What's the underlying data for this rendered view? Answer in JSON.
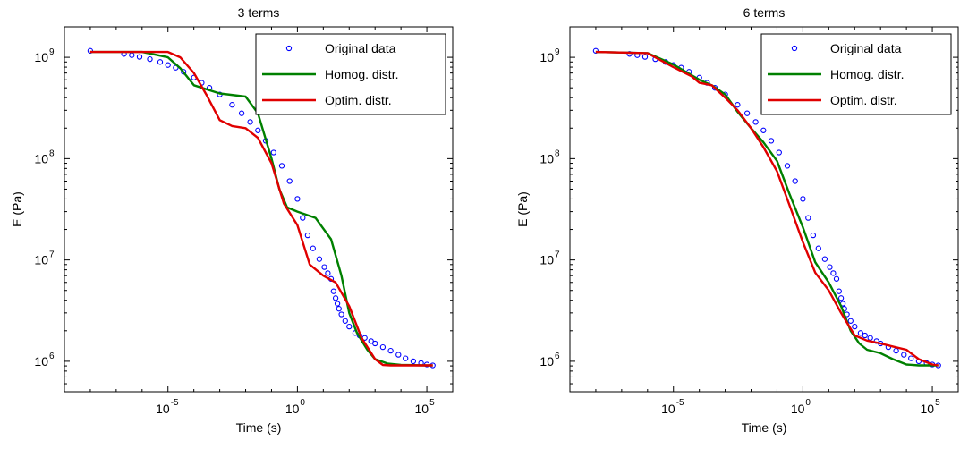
{
  "chart_data": [
    {
      "type": "line",
      "title": "3 terms",
      "xlabel": "Time (s)",
      "ylabel": "E (Pa)",
      "xscale": "log",
      "yscale": "log",
      "xlim": [
        1e-09,
        1000000.0
      ],
      "ylim": [
        500000,
        2000000000
      ],
      "xticks": [
        {
          "base": "10",
          "exp": "-5",
          "value": 1e-05
        },
        {
          "base": "10",
          "exp": "0",
          "value": 1
        },
        {
          "base": "10",
          "exp": "5",
          "value": 100000.0
        }
      ],
      "yticks": [
        {
          "base": "10",
          "exp": "6",
          "value": 1000000.0
        },
        {
          "base": "10",
          "exp": "7",
          "value": 10000000.0
        },
        {
          "base": "10",
          "exp": "8",
          "value": 100000000.0
        },
        {
          "base": "10",
          "exp": "9",
          "value": 1000000000.0
        }
      ],
      "legend": {
        "location": "top-right",
        "entries": [
          "Original data",
          "Homog. distr.",
          "Optim. distr."
        ]
      },
      "series": [
        {
          "name": "Original data",
          "marker": "o",
          "color": "#0000ff",
          "x": [
            1e-08,
            2e-07,
            4e-07,
            8e-07,
            2e-06,
            5e-06,
            1e-05,
            2e-05,
            4e-05,
            0.0001,
            0.0002,
            0.0004,
            0.001,
            0.003,
            0.007,
            0.015,
            0.03,
            0.06,
            0.12,
            0.25,
            0.5,
            1,
            1.6,
            2.5,
            4,
            7,
            11,
            15,
            20,
            25,
            30,
            35,
            40,
            50,
            70,
            100,
            170,
            250,
            400,
            700,
            1000,
            2000,
            4000,
            8000,
            15000,
            30000,
            60000,
            100000,
            170000
          ],
          "y": [
            1160000000.0,
            1080000000.0,
            1050000000.0,
            1010000000.0,
            960000000.0,
            900000000.0,
            840000000.0,
            790000000.0,
            720000000.0,
            630000000.0,
            560000000.0,
            500000000.0,
            430000000.0,
            340000000.0,
            280000000.0,
            230000000.0,
            190000000.0,
            150000000.0,
            115000000.0,
            85000000.0,
            60000000.0,
            40000000.0,
            26000000.0,
            17500000.0,
            13000000.0,
            10200000.0,
            8500000.0,
            7400000.0,
            6500000.0,
            4900000.0,
            4200000.0,
            3700000.0,
            3300000.0,
            2900000.0,
            2500000.0,
            2200000.0,
            1900000.0,
            1800000.0,
            1700000.0,
            1580000.0,
            1500000.0,
            1380000.0,
            1270000.0,
            1160000.0,
            1070000.0,
            1000000.0,
            960000.0,
            930000.0,
            910000.0
          ]
        },
        {
          "name": "Homog. distr.",
          "marker": "",
          "color": "#008000",
          "x": [
            1e-08,
            1e-06,
            1e-05,
            3e-05,
            0.0001,
            0.001,
            0.01,
            0.03,
            0.1,
            0.2,
            0.4,
            1,
            5,
            20,
            50,
            100,
            200,
            500,
            1000,
            3000,
            10000,
            100000,
            170000
          ],
          "y": [
            1130000000.0,
            1130000000.0,
            1000000000.0,
            780000000.0,
            530000000.0,
            440000000.0,
            410000000.0,
            280000000.0,
            100000000.0,
            50000000.0,
            33000000.0,
            30000000.0,
            26000000.0,
            16000000.0,
            7000000.0,
            3000000.0,
            1900000.0,
            1300000.0,
            1050000.0,
            950000.0,
            920000.0,
            910000.0,
            910000.0
          ]
        },
        {
          "name": "Optim. distr.",
          "marker": "",
          "color": "#e00000",
          "x": [
            1e-08,
            1e-05,
            3e-05,
            0.0001,
            0.0003,
            0.001,
            0.003,
            0.01,
            0.03,
            0.1,
            0.3,
            1,
            3,
            10,
            30,
            100,
            300,
            1000,
            2000,
            4000,
            10000,
            100000,
            170000
          ],
          "y": [
            1130000000.0,
            1130000000.0,
            1000000000.0,
            700000000.0,
            430000000.0,
            240000000.0,
            210000000.0,
            200000000.0,
            160000000.0,
            90000000.0,
            36000000.0,
            22000000.0,
            9000000.0,
            7000000.0,
            6000000.0,
            3500000.0,
            1700000.0,
            1050000.0,
            920000.0,
            910000.0,
            910000.0,
            910000.0,
            910000.0
          ]
        }
      ]
    },
    {
      "type": "line",
      "title": "6 terms",
      "xlabel": "Time (s)",
      "ylabel": "E (Pa)",
      "xscale": "log",
      "yscale": "log",
      "xlim": [
        1e-09,
        1000000.0
      ],
      "ylim": [
        500000,
        2000000000
      ],
      "xticks": [
        {
          "base": "10",
          "exp": "-5",
          "value": 1e-05
        },
        {
          "base": "10",
          "exp": "0",
          "value": 1
        },
        {
          "base": "10",
          "exp": "5",
          "value": 100000.0
        }
      ],
      "yticks": [
        {
          "base": "10",
          "exp": "6",
          "value": 1000000.0
        },
        {
          "base": "10",
          "exp": "7",
          "value": 10000000.0
        },
        {
          "base": "10",
          "exp": "8",
          "value": 100000000.0
        },
        {
          "base": "10",
          "exp": "9",
          "value": 1000000000.0
        }
      ],
      "legend": {
        "location": "top-right",
        "entries": [
          "Original data",
          "Homog. distr.",
          "Optim. distr."
        ]
      },
      "series": [
        {
          "name": "Original data",
          "marker": "o",
          "color": "#0000ff",
          "x": [
            1e-08,
            2e-07,
            4e-07,
            8e-07,
            2e-06,
            5e-06,
            1e-05,
            2e-05,
            4e-05,
            0.0001,
            0.0002,
            0.0004,
            0.001,
            0.003,
            0.007,
            0.015,
            0.03,
            0.06,
            0.12,
            0.25,
            0.5,
            1,
            1.6,
            2.5,
            4,
            7,
            11,
            15,
            20,
            25,
            30,
            35,
            40,
            50,
            70,
            100,
            170,
            250,
            400,
            700,
            1000,
            2000,
            4000,
            8000,
            15000,
            30000,
            60000,
            100000,
            170000
          ],
          "y": [
            1160000000.0,
            1080000000.0,
            1050000000.0,
            1010000000.0,
            960000000.0,
            900000000.0,
            840000000.0,
            790000000.0,
            720000000.0,
            630000000.0,
            560000000.0,
            500000000.0,
            430000000.0,
            340000000.0,
            280000000.0,
            230000000.0,
            190000000.0,
            150000000.0,
            115000000.0,
            85000000.0,
            60000000.0,
            40000000.0,
            26000000.0,
            17500000.0,
            13000000.0,
            10200000.0,
            8500000.0,
            7400000.0,
            6500000.0,
            4900000.0,
            4200000.0,
            3700000.0,
            3300000.0,
            2900000.0,
            2500000.0,
            2200000.0,
            1900000.0,
            1800000.0,
            1700000.0,
            1580000.0,
            1500000.0,
            1380000.0,
            1270000.0,
            1160000.0,
            1070000.0,
            1000000.0,
            960000.0,
            930000.0,
            910000.0
          ]
        },
        {
          "name": "Homog. distr.",
          "marker": "",
          "color": "#008000",
          "x": [
            1e-08,
            1e-06,
            1e-05,
            0.0001,
            0.0003,
            0.001,
            0.003,
            0.01,
            0.03,
            0.1,
            0.3,
            1,
            3,
            10,
            30,
            70,
            150,
            300,
            1000,
            3000,
            10000,
            30000,
            100000,
            170000
          ],
          "y": [
            1130000000.0,
            1100000000.0,
            850000000.0,
            600000000.0,
            530000000.0,
            430000000.0,
            290000000.0,
            200000000.0,
            145000000.0,
            95000000.0,
            45000000.0,
            21000000.0,
            9500000.0,
            6000000.0,
            3500000.0,
            2000000.0,
            1500000.0,
            1300000.0,
            1200000.0,
            1050000.0,
            930000.0,
            910000.0,
            910000.0,
            910000.0
          ]
        },
        {
          "name": "Optim. distr.",
          "marker": "",
          "color": "#e00000",
          "x": [
            1e-08,
            1e-06,
            1e-05,
            5e-05,
            0.0001,
            0.0003,
            0.001,
            0.003,
            0.01,
            0.03,
            0.1,
            0.3,
            1,
            3,
            10,
            30,
            100,
            300,
            1000,
            3000,
            10000,
            30000,
            100000,
            170000
          ],
          "y": [
            1130000000.0,
            1100000000.0,
            800000000.0,
            650000000.0,
            560000000.0,
            530000000.0,
            400000000.0,
            300000000.0,
            200000000.0,
            130000000.0,
            75000000.0,
            35000000.0,
            15000000.0,
            7500000.0,
            5000000.0,
            3000000.0,
            1800000.0,
            1600000.0,
            1500000.0,
            1400000.0,
            1300000.0,
            1050000.0,
            930000.0,
            910000.0
          ]
        }
      ]
    }
  ]
}
